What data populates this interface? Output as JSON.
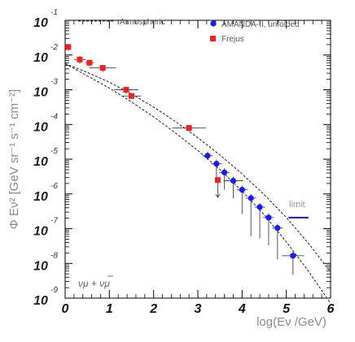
{
  "chart_data": {
    "type": "scatter",
    "xlabel": "log(Eν /GeV)",
    "ylabel": "Φ Eν² [GeV sr⁻¹ s⁻¹ cm⁻²]",
    "xlim": [
      0,
      6
    ],
    "ylim": [
      -9,
      -1
    ],
    "log_y": true,
    "grid": false,
    "legend_position": "top",
    "x_ticks": [
      "0",
      "1",
      "2",
      "3",
      "4",
      "5",
      "6"
    ],
    "y_ticks": [
      {
        "base": "10",
        "power": "-1",
        "value": -1
      },
      {
        "base": "10",
        "power": "-2",
        "value": -2
      },
      {
        "base": "10",
        "power": "-3",
        "value": -3
      },
      {
        "base": "10",
        "power": "-4",
        "value": -4
      },
      {
        "base": "10",
        "power": "-5",
        "value": -5
      },
      {
        "base": "10",
        "power": "-6",
        "value": -6
      },
      {
        "base": "10",
        "power": "-7",
        "value": -7
      },
      {
        "base": "10",
        "power": "-8",
        "value": -8
      },
      {
        "base": "10",
        "power": "-9",
        "value": -9
      }
    ],
    "legend": [
      {
        "label": "Atmospheric",
        "style": "dashed-line",
        "color": "#333333"
      },
      {
        "label": "AMANDA-II, unfolded",
        "style": "circle",
        "color": "#1a1aff"
      },
      {
        "label": "Frejus",
        "style": "square",
        "color": "#ee2222"
      }
    ],
    "annotations": {
      "flavor_label": "νμ + νμ",
      "limit_label": "limit"
    },
    "atmospheric_band": {
      "upper": [
        [
          0.0,
          -2.25
        ],
        [
          0.5,
          -2.5
        ],
        [
          1.0,
          -2.78
        ],
        [
          1.5,
          -3.12
        ],
        [
          2.0,
          -3.5
        ],
        [
          2.5,
          -3.92
        ],
        [
          3.0,
          -4.38
        ],
        [
          3.5,
          -4.88
        ],
        [
          4.0,
          -5.42
        ],
        [
          4.5,
          -6.02
        ],
        [
          5.0,
          -6.68
        ],
        [
          5.5,
          -7.42
        ],
        [
          6.0,
          -8.25
        ]
      ],
      "lower": [
        [
          0.0,
          -2.25
        ],
        [
          0.5,
          -2.6
        ],
        [
          1.0,
          -2.95
        ],
        [
          1.5,
          -3.35
        ],
        [
          2.0,
          -3.78
        ],
        [
          2.5,
          -4.25
        ],
        [
          3.0,
          -4.75
        ],
        [
          3.5,
          -5.3
        ],
        [
          4.0,
          -5.92
        ],
        [
          4.5,
          -6.6
        ],
        [
          5.0,
          -7.38
        ],
        [
          5.5,
          -8.22
        ],
        [
          6.0,
          -9.15
        ]
      ]
    },
    "series": [
      {
        "name": "Frejus",
        "marker": "square",
        "color": "#ee2222",
        "points": [
          {
            "x": 0.07,
            "y": -1.77,
            "xerr": 0.07,
            "yup": 0.1,
            "ydown": 0.1,
            "upper_limit": false
          },
          {
            "x": 0.33,
            "y": -2.13,
            "xerr": 0.13,
            "yup": 0.1,
            "ydown": 0.12,
            "upper_limit": false
          },
          {
            "x": 0.55,
            "y": -2.22,
            "xerr": 0.1,
            "yup": 0.08,
            "ydown": 0.12,
            "upper_limit": false
          },
          {
            "x": 0.85,
            "y": -2.37,
            "xerr": 0.3,
            "yup": 0.08,
            "ydown": 0.12,
            "upper_limit": false
          },
          {
            "x": 1.38,
            "y": -3.0,
            "xerr": 0.27,
            "yup": 0.08,
            "ydown": 0.12,
            "upper_limit": false
          },
          {
            "x": 1.5,
            "y": -3.18,
            "xerr": 0.22,
            "yup": 0.05,
            "ydown": 0.08,
            "upper_limit": false
          },
          {
            "x": 2.8,
            "y": -4.1,
            "xerr": 0.38,
            "yup": 0.08,
            "ydown": 0.1,
            "upper_limit": false
          },
          {
            "x": 3.45,
            "y": -5.6,
            "xerr": 0.0,
            "yup": 0.0,
            "ydown": 0.0,
            "upper_limit": true,
            "arrow_to": -6.1
          }
        ]
      },
      {
        "name": "AMANDA-II, unfolded",
        "marker": "circle",
        "color": "#1a1aff",
        "points": [
          {
            "x": 3.22,
            "y": -4.9,
            "xerr": 0.12,
            "yup": 0.12,
            "ydown": 0.12,
            "upper_limit": false
          },
          {
            "x": 3.42,
            "y": -5.13,
            "xerr": 0.12,
            "yup": 0.12,
            "ydown": 0.45,
            "upper_limit": false
          },
          {
            "x": 3.6,
            "y": -5.38,
            "xerr": 0.12,
            "yup": 0.12,
            "ydown": 0.5,
            "upper_limit": false
          },
          {
            "x": 3.8,
            "y": -5.62,
            "xerr": 0.22,
            "yup": 0.12,
            "ydown": 0.5,
            "upper_limit": false
          },
          {
            "x": 4.0,
            "y": -5.88,
            "xerr": 0.12,
            "yup": 0.12,
            "ydown": 0.7,
            "upper_limit": false
          },
          {
            "x": 4.2,
            "y": -6.12,
            "xerr": 0.12,
            "yup": 0.12,
            "ydown": 1.1,
            "upper_limit": false
          },
          {
            "x": 4.4,
            "y": -6.38,
            "xerr": 0.12,
            "yup": 0.12,
            "ydown": 0.9,
            "upper_limit": false
          },
          {
            "x": 4.6,
            "y": -6.68,
            "xerr": 0.12,
            "yup": 0.12,
            "ydown": 0.8,
            "upper_limit": false
          },
          {
            "x": 4.8,
            "y": -6.98,
            "xerr": 0.12,
            "yup": 0.12,
            "ydown": 0.9,
            "upper_limit": false
          },
          {
            "x": 5.15,
            "y": -7.78,
            "xerr": 0.25,
            "yup": 0.12,
            "ydown": 0.55,
            "upper_limit": false
          }
        ]
      }
    ],
    "limit_line": {
      "x1": 5.05,
      "x2": 5.5,
      "y": -6.68,
      "color": "#1a1a99"
    }
  }
}
